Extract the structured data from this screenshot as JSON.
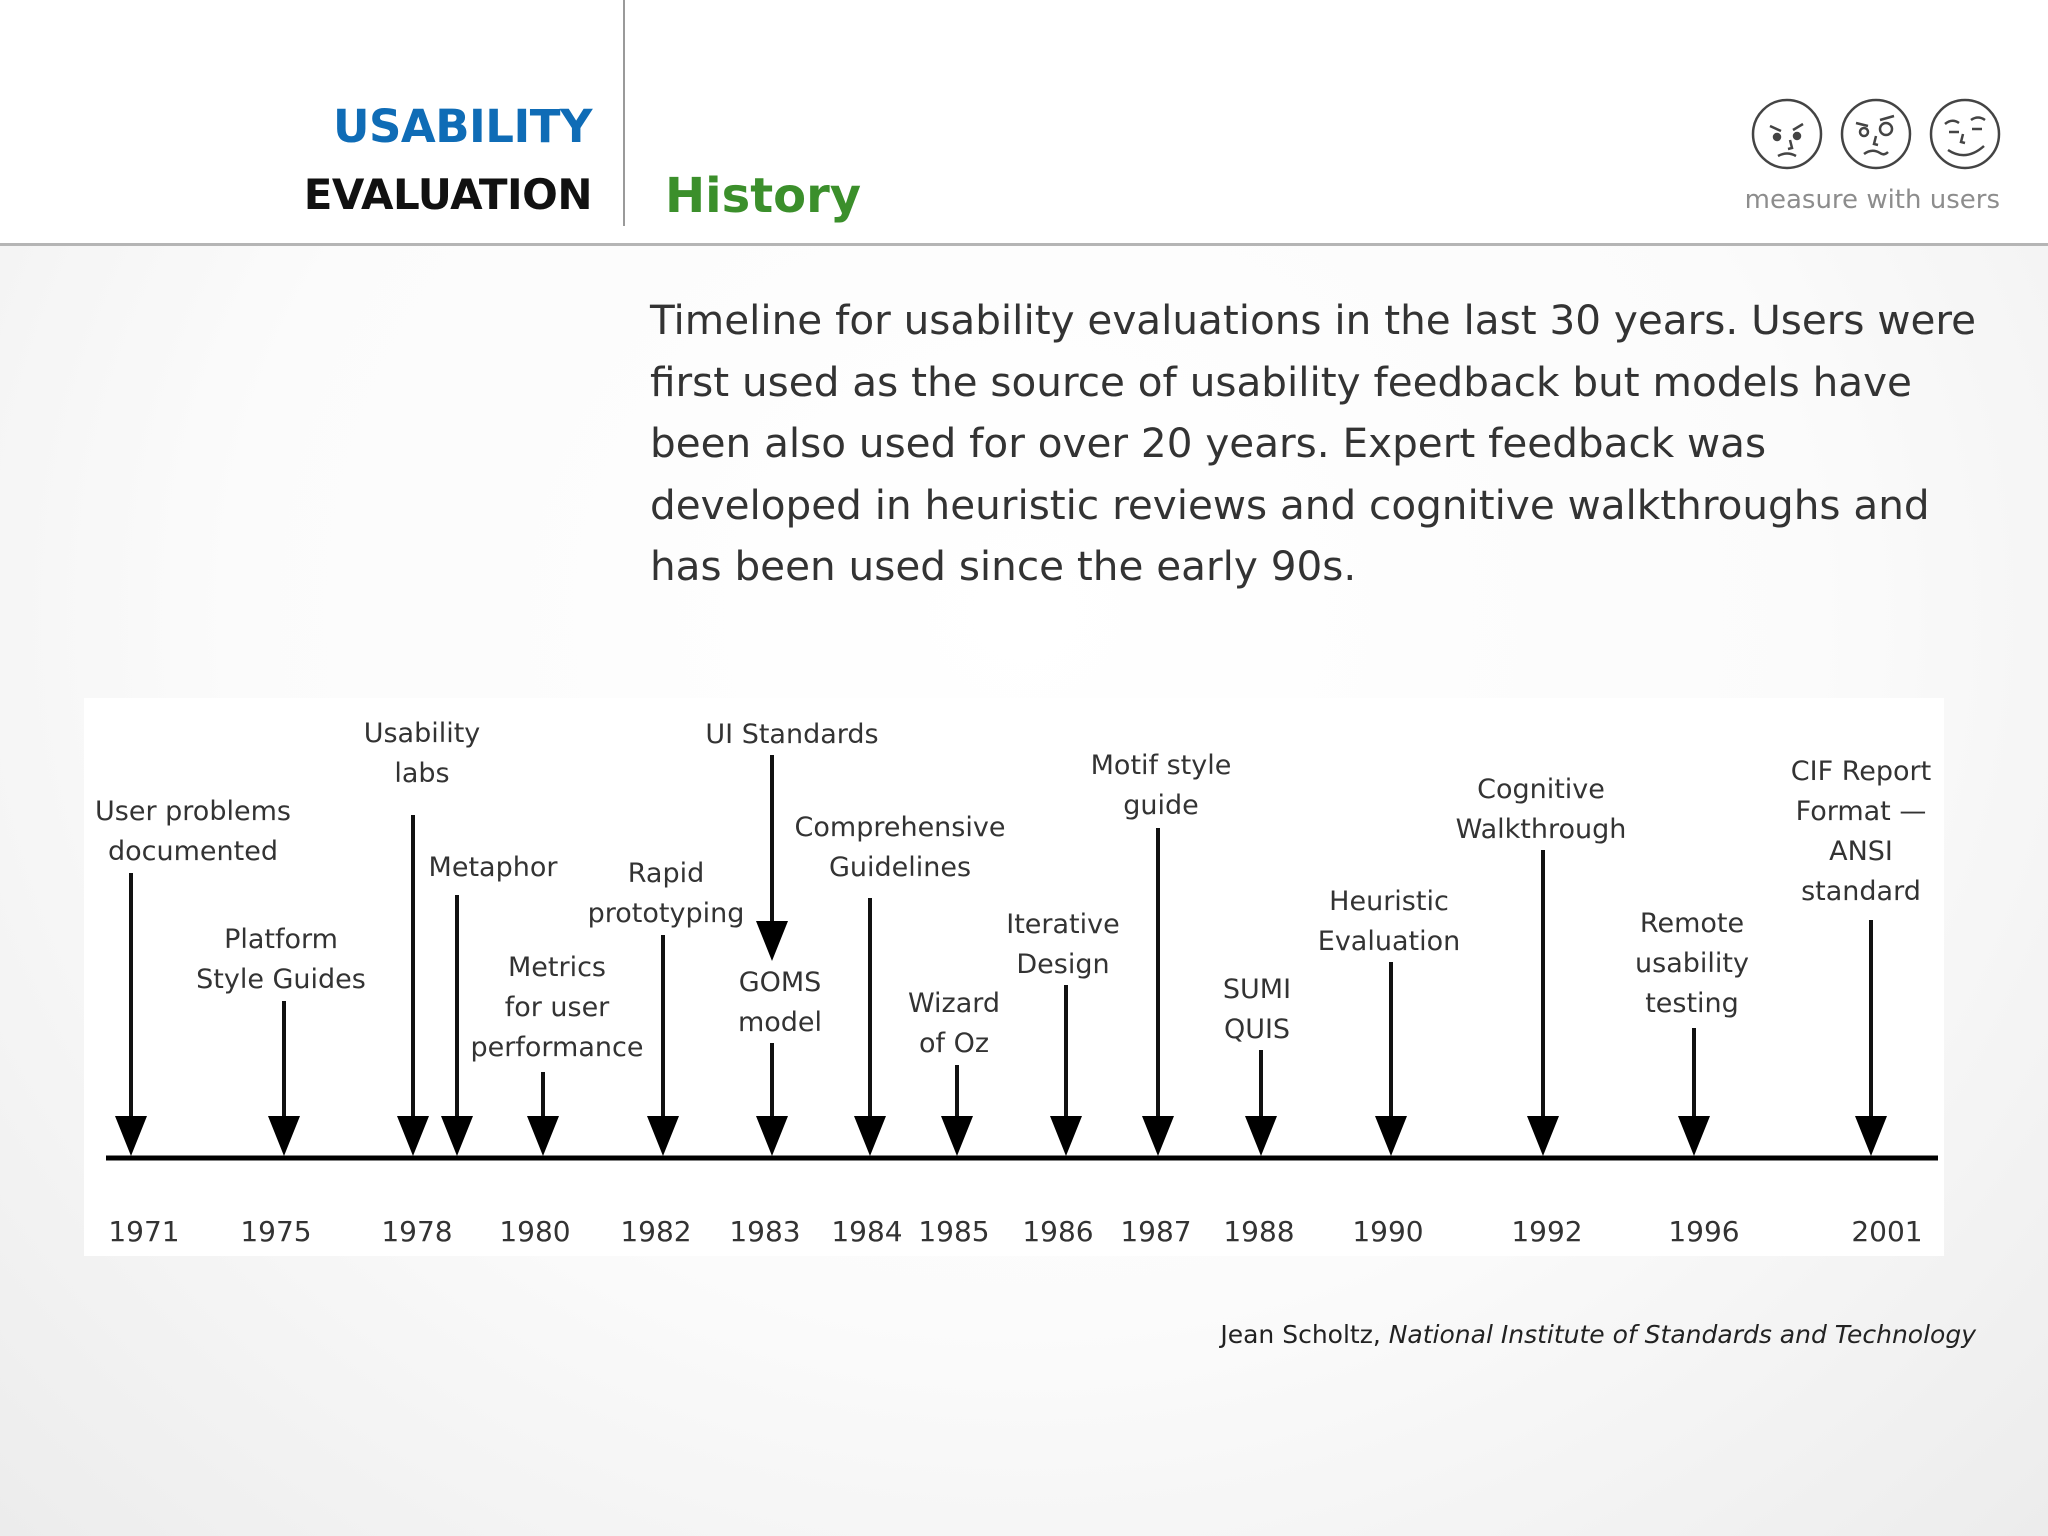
{
  "header": {
    "brand_line1": "USABILITY",
    "brand_line2": "EVALUATION",
    "section_title": "History",
    "tagline": "measure with users",
    "icons": [
      "sad-face-icon",
      "confused-face-icon",
      "happy-face-icon"
    ]
  },
  "intro": "Timeline for usability evaluations in the last 30 years. Users were first used as the source of usability feedback but models have been also used for over 20 years. Expert feedback was developed in heuristic reviews and cognitive walkthroughs and has been used since the early 90s.",
  "timeline": {
    "years": [
      "1971",
      "1975",
      "1978",
      "1980",
      "1982",
      "1983",
      "1984",
      "1985",
      "1986",
      "1987",
      "1988",
      "1990",
      "1992",
      "1996",
      "2001"
    ],
    "events": [
      {
        "label_lines": [
          "User problems",
          "documented"
        ]
      },
      {
        "label_lines": [
          "Platform",
          "Style Guides"
        ]
      },
      {
        "label_lines": [
          "Usability",
          "labs"
        ]
      },
      {
        "label_lines": [
          "Metaphor"
        ]
      },
      {
        "label_lines": [
          "Metrics",
          "for user",
          "performance"
        ]
      },
      {
        "label_lines": [
          "Rapid",
          "prototyping"
        ]
      },
      {
        "label_lines": [
          "UI Standards"
        ]
      },
      {
        "label_lines": [
          "GOMS",
          "model"
        ]
      },
      {
        "label_lines": [
          "Comprehensive",
          "Guidelines"
        ]
      },
      {
        "label_lines": [
          "Wizard",
          "of Oz"
        ]
      },
      {
        "label_lines": [
          "Iterative",
          "Design"
        ]
      },
      {
        "label_lines": [
          "Motif style",
          "guide"
        ]
      },
      {
        "label_lines": [
          "SUMI",
          "QUIS"
        ]
      },
      {
        "label_lines": [
          "Heuristic",
          "Evaluation"
        ]
      },
      {
        "label_lines": [
          "Cognitive",
          "Walkthrough"
        ]
      },
      {
        "label_lines": [
          "Remote",
          "usability",
          "testing"
        ]
      },
      {
        "label_lines": [
          "CIF Report",
          "Format —",
          "ANSI",
          "standard"
        ]
      }
    ]
  },
  "credit": {
    "author": "Jean Scholtz,",
    "organization": "National Institute of Standards and Technology"
  }
}
